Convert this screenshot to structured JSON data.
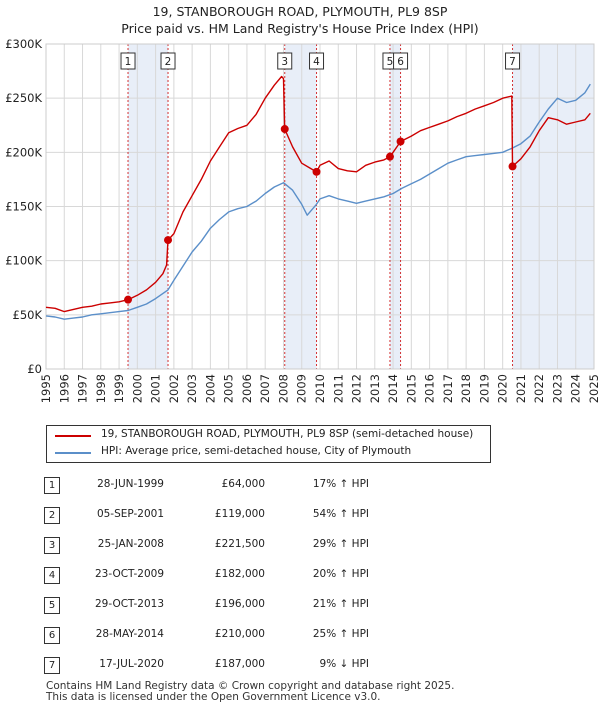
{
  "title_line1": "19, STANBOROUGH ROAD, PLYMOUTH, PL9 8SP",
  "title_line2": "Price paid vs. HM Land Registry's House Price Index (HPI)",
  "colors": {
    "property": "#cc0000",
    "hpi": "#5b8fc9",
    "shade": "#e8eef8",
    "marker_line": "#cc0000"
  },
  "legend": {
    "property_label": "19, STANBOROUGH ROAD, PLYMOUTH, PL9 8SP (semi-detached house)",
    "hpi_label": "HPI: Average price, semi-detached house, City of Plymouth"
  },
  "sales": [
    {
      "num": "1",
      "date": "28-JUN-1999",
      "price": "£64,000",
      "hpi": "17% ↑ HPI"
    },
    {
      "num": "2",
      "date": "05-SEP-2001",
      "price": "£119,000",
      "hpi": "54% ↑ HPI"
    },
    {
      "num": "3",
      "date": "25-JAN-2008",
      "price": "£221,500",
      "hpi": "29% ↑ HPI"
    },
    {
      "num": "4",
      "date": "23-OCT-2009",
      "price": "£182,000",
      "hpi": "20% ↑ HPI"
    },
    {
      "num": "5",
      "date": "29-OCT-2013",
      "price": "£196,000",
      "hpi": "21% ↑ HPI"
    },
    {
      "num": "6",
      "date": "28-MAY-2014",
      "price": "£210,000",
      "hpi": "25% ↑ HPI"
    },
    {
      "num": "7",
      "date": "17-JUL-2020",
      "price": "£187,000",
      "hpi": "9% ↓ HPI"
    }
  ],
  "footer_line1": "Contains HM Land Registry data © Crown copyright and database right 2025.",
  "footer_line2": "This data is licensed under the Open Government Licence v3.0.",
  "chart_data": {
    "type": "line",
    "xlim": [
      1995,
      2025
    ],
    "ylim": [
      0,
      300000
    ],
    "y_ticks": [
      {
        "value": 0,
        "label": "£0"
      },
      {
        "value": 50000,
        "label": "£50K"
      },
      {
        "value": 100000,
        "label": "£100K"
      },
      {
        "value": 150000,
        "label": "£150K"
      },
      {
        "value": 200000,
        "label": "£200K"
      },
      {
        "value": 250000,
        "label": "£250K"
      },
      {
        "value": 300000,
        "label": "£300K"
      }
    ],
    "x_ticks": [
      "1995",
      "1996",
      "1997",
      "1998",
      "1999",
      "2000",
      "2001",
      "2002",
      "2003",
      "2004",
      "2005",
      "2006",
      "2007",
      "2008",
      "2009",
      "2010",
      "2011",
      "2012",
      "2013",
      "2014",
      "2015",
      "2016",
      "2017",
      "2018",
      "2019",
      "2020",
      "2021",
      "2022",
      "2023",
      "2024",
      "2025"
    ],
    "grid": true,
    "shaded_periods": [
      [
        1999.49,
        2001.68
      ],
      [
        2008.07,
        2009.81
      ],
      [
        2013.83,
        2014.41
      ],
      [
        2020.54,
        2025
      ]
    ],
    "sale_markers": [
      {
        "label": "1",
        "x": 1999.49,
        "y": 64000
      },
      {
        "label": "2",
        "x": 2001.68,
        "y": 119000
      },
      {
        "label": "3",
        "x": 2008.07,
        "y": 221500
      },
      {
        "label": "4",
        "x": 2009.81,
        "y": 182000
      },
      {
        "label": "5",
        "x": 2013.83,
        "y": 196000
      },
      {
        "label": "6",
        "x": 2014.41,
        "y": 210000
      },
      {
        "label": "7",
        "x": 2020.54,
        "y": 187000
      }
    ],
    "series": [
      {
        "name": "19, STANBOROUGH ROAD, PLYMOUTH, PL9 8SP (semi-detached house)",
        "color": "#cc0000",
        "points": [
          [
            1995,
            57000
          ],
          [
            1995.5,
            56000
          ],
          [
            1996,
            53000
          ],
          [
            1996.5,
            55000
          ],
          [
            1997,
            57000
          ],
          [
            1997.5,
            58000
          ],
          [
            1998,
            60000
          ],
          [
            1998.5,
            61000
          ],
          [
            1999,
            62000
          ],
          [
            1999.49,
            64000
          ],
          [
            2000,
            68000
          ],
          [
            2000.5,
            73000
          ],
          [
            2001,
            80000
          ],
          [
            2001.4,
            88000
          ],
          [
            2001.6,
            96000
          ],
          [
            2001.68,
            119000
          ],
          [
            2002,
            125000
          ],
          [
            2002.5,
            145000
          ],
          [
            2003,
            160000
          ],
          [
            2003.5,
            175000
          ],
          [
            2004,
            192000
          ],
          [
            2004.5,
            205000
          ],
          [
            2005,
            218000
          ],
          [
            2005.5,
            222000
          ],
          [
            2006,
            225000
          ],
          [
            2006.5,
            235000
          ],
          [
            2007,
            250000
          ],
          [
            2007.5,
            262000
          ],
          [
            2007.9,
            270000
          ],
          [
            2008,
            268000
          ],
          [
            2008.07,
            221500
          ],
          [
            2008.5,
            205000
          ],
          [
            2009,
            190000
          ],
          [
            2009.5,
            185000
          ],
          [
            2009.81,
            182000
          ],
          [
            2010,
            188000
          ],
          [
            2010.5,
            192000
          ],
          [
            2011,
            185000
          ],
          [
            2011.5,
            183000
          ],
          [
            2012,
            182000
          ],
          [
            2012.5,
            188000
          ],
          [
            2013,
            191000
          ],
          [
            2013.5,
            193000
          ],
          [
            2013.83,
            196000
          ],
          [
            2014,
            200000
          ],
          [
            2014.41,
            210000
          ],
          [
            2015,
            215000
          ],
          [
            2015.5,
            220000
          ],
          [
            2016,
            223000
          ],
          [
            2016.5,
            226000
          ],
          [
            2017,
            229000
          ],
          [
            2017.5,
            233000
          ],
          [
            2018,
            236000
          ],
          [
            2018.5,
            240000
          ],
          [
            2019,
            243000
          ],
          [
            2019.5,
            246000
          ],
          [
            2020,
            250000
          ],
          [
            2020.5,
            252000
          ],
          [
            2020.54,
            187000
          ],
          [
            2021,
            194000
          ],
          [
            2021.5,
            205000
          ],
          [
            2022,
            220000
          ],
          [
            2022.5,
            232000
          ],
          [
            2023,
            230000
          ],
          [
            2023.5,
            226000
          ],
          [
            2024,
            228000
          ],
          [
            2024.5,
            230000
          ],
          [
            2024.8,
            236000
          ]
        ]
      },
      {
        "name": "HPI: Average price, semi-detached house, City of Plymouth",
        "color": "#5b8fc9",
        "points": [
          [
            1995,
            49000
          ],
          [
            1995.5,
            48000
          ],
          [
            1996,
            46000
          ],
          [
            1996.5,
            47000
          ],
          [
            1997,
            48000
          ],
          [
            1997.5,
            50000
          ],
          [
            1998,
            51000
          ],
          [
            1998.5,
            52000
          ],
          [
            1999,
            53000
          ],
          [
            1999.49,
            54000
          ],
          [
            2000,
            57000
          ],
          [
            2000.5,
            60000
          ],
          [
            2001,
            65000
          ],
          [
            2001.68,
            73000
          ],
          [
            2002,
            82000
          ],
          [
            2002.5,
            95000
          ],
          [
            2003,
            108000
          ],
          [
            2003.5,
            118000
          ],
          [
            2004,
            130000
          ],
          [
            2004.5,
            138000
          ],
          [
            2005,
            145000
          ],
          [
            2005.5,
            148000
          ],
          [
            2006,
            150000
          ],
          [
            2006.5,
            155000
          ],
          [
            2007,
            162000
          ],
          [
            2007.5,
            168000
          ],
          [
            2008,
            172000
          ],
          [
            2008.5,
            165000
          ],
          [
            2009,
            152000
          ],
          [
            2009.3,
            142000
          ],
          [
            2009.81,
            152000
          ],
          [
            2010,
            157000
          ],
          [
            2010.5,
            160000
          ],
          [
            2011,
            157000
          ],
          [
            2011.5,
            155000
          ],
          [
            2012,
            153000
          ],
          [
            2012.5,
            155000
          ],
          [
            2013,
            157000
          ],
          [
            2013.5,
            159000
          ],
          [
            2014,
            162000
          ],
          [
            2014.5,
            167000
          ],
          [
            2015,
            171000
          ],
          [
            2015.5,
            175000
          ],
          [
            2016,
            180000
          ],
          [
            2016.5,
            185000
          ],
          [
            2017,
            190000
          ],
          [
            2017.5,
            193000
          ],
          [
            2018,
            196000
          ],
          [
            2018.5,
            197000
          ],
          [
            2019,
            198000
          ],
          [
            2019.5,
            199000
          ],
          [
            2020,
            200000
          ],
          [
            2020.54,
            204000
          ],
          [
            2021,
            208000
          ],
          [
            2021.5,
            215000
          ],
          [
            2022,
            228000
          ],
          [
            2022.5,
            240000
          ],
          [
            2023,
            250000
          ],
          [
            2023.5,
            246000
          ],
          [
            2024,
            248000
          ],
          [
            2024.5,
            255000
          ],
          [
            2024.8,
            263000
          ]
        ]
      }
    ]
  }
}
